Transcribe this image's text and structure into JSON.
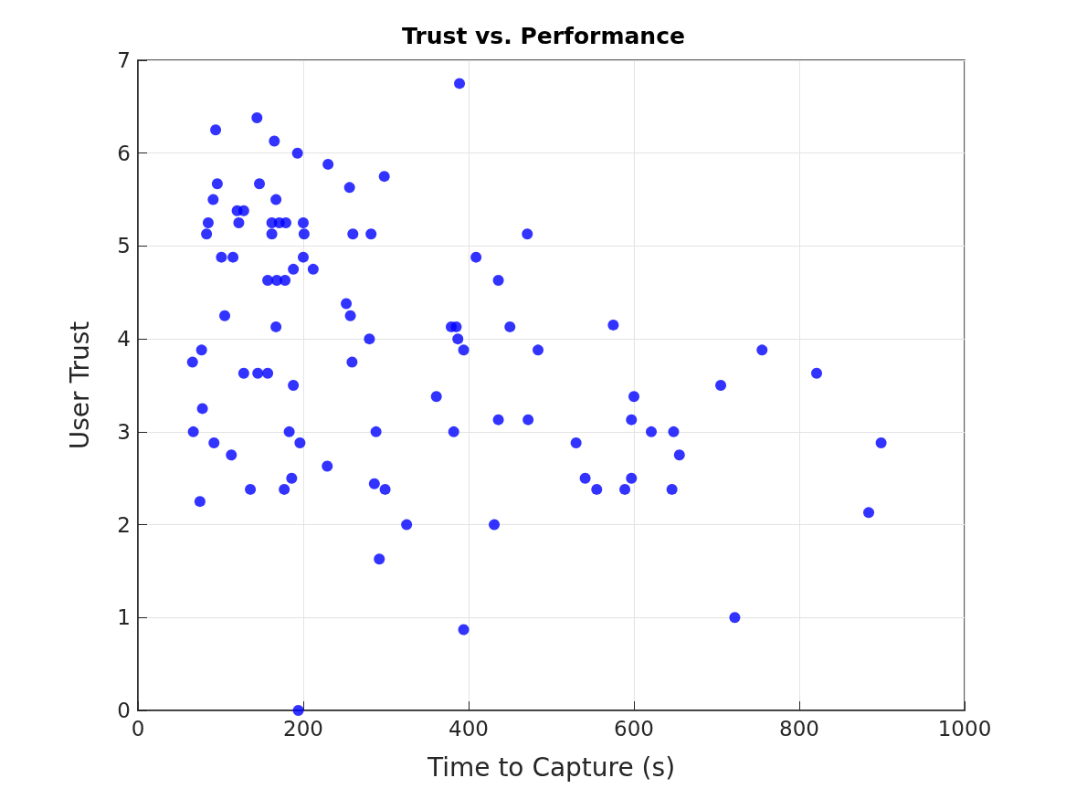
{
  "chart_data": {
    "type": "scatter",
    "title": "Trust vs. Performance",
    "xlabel": "Time to Capture (s)",
    "ylabel": "User Trust",
    "xlim": [
      0,
      1000
    ],
    "xticks": [
      0,
      200,
      400,
      600,
      800,
      1000
    ],
    "ylim": [
      0,
      7
    ],
    "yticks": [
      0,
      1,
      2,
      3,
      4,
      5,
      6,
      7
    ],
    "grid": true,
    "marker": "circle",
    "series": [
      {
        "color": "#0000ff",
        "x": [
          144,
          94,
          165,
          193,
          230,
          298,
          96,
          147,
          256,
          91,
          167,
          120,
          128,
          85,
          122,
          162,
          171,
          179,
          200,
          83,
          162,
          201,
          260,
          282,
          101,
          115,
          200,
          188,
          212,
          157,
          168,
          178,
          252,
          257,
          105,
          167,
          280,
          77,
          66,
          259,
          128,
          145,
          157,
          188,
          78,
          67,
          183,
          288,
          92,
          196,
          113,
          229,
          186,
          286,
          299,
          136,
          177,
          75,
          292,
          194,
          389,
          471,
          409,
          436,
          379,
          385,
          450,
          575,
          387,
          394,
          484,
          361,
          600,
          436,
          472,
          597,
          382,
          530,
          541,
          597,
          555,
          589,
          325,
          431,
          394,
          755,
          821,
          705,
          621,
          648,
          899,
          655,
          646,
          884,
          722
        ],
        "values": [
          6.38,
          6.25,
          6.13,
          6.0,
          5.88,
          5.75,
          5.67,
          5.67,
          5.63,
          5.5,
          5.5,
          5.38,
          5.38,
          5.25,
          5.25,
          5.25,
          5.25,
          5.25,
          5.25,
          5.13,
          5.13,
          5.13,
          5.13,
          5.13,
          4.88,
          4.88,
          4.88,
          4.75,
          4.75,
          4.63,
          4.63,
          4.63,
          4.38,
          4.25,
          4.25,
          4.13,
          4.0,
          3.88,
          3.75,
          3.75,
          3.63,
          3.63,
          3.63,
          3.5,
          3.25,
          3.0,
          3.0,
          3.0,
          2.88,
          2.88,
          2.75,
          2.63,
          2.5,
          2.44,
          2.38,
          2.38,
          2.38,
          2.25,
          1.63,
          0,
          6.75,
          5.13,
          4.88,
          4.63,
          4.13,
          4.13,
          4.13,
          4.15,
          4.0,
          3.88,
          3.88,
          3.38,
          3.38,
          3.13,
          3.13,
          3.13,
          3.0,
          2.88,
          2.5,
          2.5,
          2.38,
          2.38,
          2.0,
          2.0,
          0.87,
          3.88,
          3.63,
          3.5,
          3.0,
          3.0,
          2.88,
          2.75,
          2.38,
          2.13,
          1.0
        ]
      }
    ]
  }
}
